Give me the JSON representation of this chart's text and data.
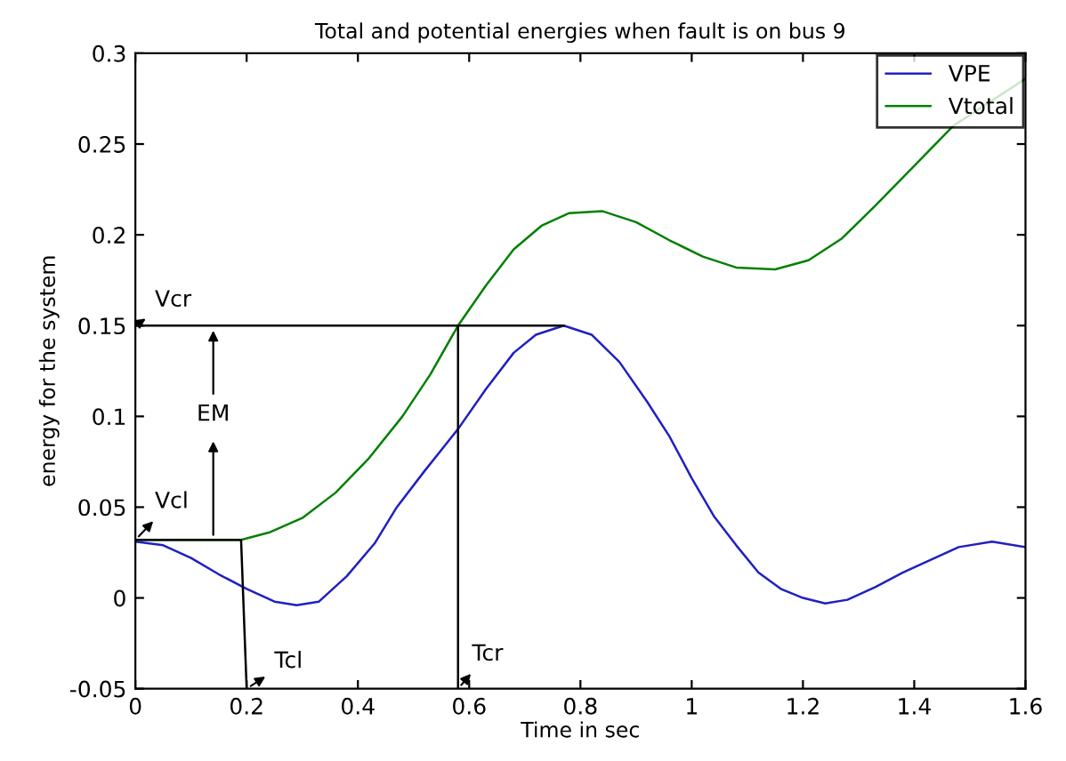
{
  "chart_data": {
    "type": "line",
    "title": "Total and potential energies when fault is on bus 9",
    "xlabel": "Time in sec",
    "ylabel": "energy for the system",
    "xlim": [
      0,
      1.6
    ],
    "xticks": [
      0,
      0.2,
      0.4,
      0.6,
      0.8,
      1,
      1.2,
      1.4,
      1.6
    ],
    "ylim": [
      -0.05,
      0.3
    ],
    "yticks": [
      -0.05,
      0,
      0.05,
      0.1,
      0.15,
      0.2,
      0.25,
      0.3
    ],
    "grid": false,
    "legend": "top right",
    "marker": "none",
    "line_style": "solid",
    "series": [
      {
        "name": "VPE",
        "color": "#2020c0",
        "x": [
          0,
          0.05,
          0.1,
          0.15,
          0.2,
          0.25,
          0.29,
          0.33,
          0.38,
          0.43,
          0.47,
          0.52,
          0.58,
          0.63,
          0.68,
          0.72,
          0.77,
          0.82,
          0.87,
          0.92,
          0.96,
          1.0,
          1.04,
          1.08,
          1.12,
          1.16,
          1.2,
          1.24,
          1.28,
          1.33,
          1.38,
          1.43,
          1.48,
          1.54,
          1.6
        ],
        "values": [
          0.031,
          0.029,
          0.022,
          0.013,
          0.005,
          -0.002,
          -0.004,
          -0.002,
          0.012,
          0.03,
          0.05,
          0.07,
          0.093,
          0.115,
          0.135,
          0.145,
          0.15,
          0.145,
          0.13,
          0.108,
          0.089,
          0.066,
          0.045,
          0.029,
          0.014,
          0.005,
          0.0,
          -0.003,
          -0.001,
          0.006,
          0.014,
          0.021,
          0.028,
          0.031,
          0.028
        ]
      },
      {
        "name": "Vtotal",
        "color": "#008000",
        "x": [
          0,
          0.19,
          0.24,
          0.3,
          0.36,
          0.42,
          0.48,
          0.53,
          0.58,
          0.63,
          0.68,
          0.73,
          0.78,
          0.84,
          0.9,
          0.96,
          1.02,
          1.08,
          1.15,
          1.21,
          1.27,
          1.33,
          1.4,
          1.47,
          1.6
        ],
        "values": [
          0.032,
          0.032,
          0.036,
          0.044,
          0.058,
          0.077,
          0.1,
          0.123,
          0.15,
          0.172,
          0.192,
          0.205,
          0.212,
          0.213,
          0.207,
          0.197,
          0.188,
          0.182,
          0.181,
          0.186,
          0.198,
          0.216,
          0.238,
          0.26,
          0.286
        ]
      },
      {
        "color": "#000000",
        "x": [
          0,
          0.77
        ],
        "values": [
          0.15,
          0.15
        ]
      },
      {
        "color": "#000000",
        "x": [
          0.58,
          0.58
        ],
        "values": [
          -0.05,
          0.15
        ]
      },
      {
        "color": "#000000",
        "x": [
          0,
          0.19,
          0.2
        ],
        "values": [
          0.032,
          0.032,
          -0.05
        ]
      }
    ],
    "annotations": [
      {
        "text": "Vcr",
        "x": 0,
        "y": 0.15
      },
      {
        "text": "Vcl",
        "x": 0,
        "y": 0.032
      },
      {
        "text": "Tcl",
        "x": 0.2,
        "y": -0.05
      },
      {
        "text": "Tcr",
        "x": 0.58,
        "y": -0.05
      },
      {
        "text": "EM",
        "x": 0.14,
        "y": 0.15
      }
    ]
  }
}
